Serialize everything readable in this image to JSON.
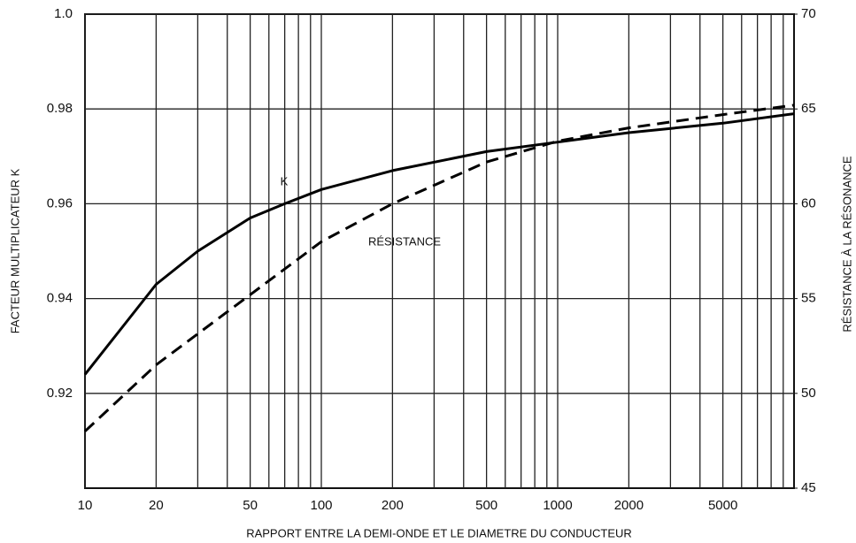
{
  "chart_data": {
    "type": "line",
    "x_label": "RAPPORT ENTRE LA DEMI-ONDE ET LE DIAMETRE DU CONDUCTEUR",
    "y_label": "FACTEUR MULTIPLICATEUR K",
    "y2_label": "RÉSISTANCE À LA RÉSONANCE",
    "annotations": [
      "K",
      "RÉSISTANCE"
    ],
    "xscale": "log",
    "xlim": [
      10,
      10000
    ],
    "xticks": [
      10,
      20,
      50,
      100,
      200,
      500,
      1000,
      2000,
      5000
    ],
    "xgrid": [
      10,
      20,
      30,
      40,
      50,
      60,
      70,
      80,
      90,
      100,
      200,
      300,
      400,
      500,
      600,
      700,
      800,
      900,
      1000,
      2000,
      3000,
      4000,
      5000,
      6000,
      7000,
      8000,
      9000
    ],
    "ylim": [
      0.9,
      1.0
    ],
    "yticks": [
      0.92,
      0.94,
      0.96,
      0.98,
      {
        "value": 1.0,
        "label": "1.0"
      }
    ],
    "y2lim": [
      45,
      70
    ],
    "y2ticks": [
      45,
      50,
      55,
      60,
      65,
      70
    ],
    "grid": true,
    "series": [
      {
        "name": "K",
        "color": "#000000",
        "linestyle": "solid",
        "x": [
          10,
          20,
          30,
          50,
          70,
          100,
          200,
          500,
          1000,
          2000,
          5000,
          10000
        ],
        "values": [
          0.924,
          0.943,
          0.95,
          0.957,
          0.96,
          0.963,
          0.967,
          0.971,
          0.973,
          0.975,
          0.977,
          0.979
        ]
      },
      {
        "name": "RÉSISTANCE",
        "color": "#000000",
        "linestyle": "dashed",
        "axis": "y2",
        "x": [
          10,
          20,
          50,
          100,
          200,
          500,
          1000,
          2000,
          5000,
          10000
        ],
        "values": [
          48.0,
          51.5,
          55.2,
          58.0,
          60.0,
          62.2,
          63.3,
          64.0,
          64.7,
          65.2
        ]
      }
    ]
  }
}
